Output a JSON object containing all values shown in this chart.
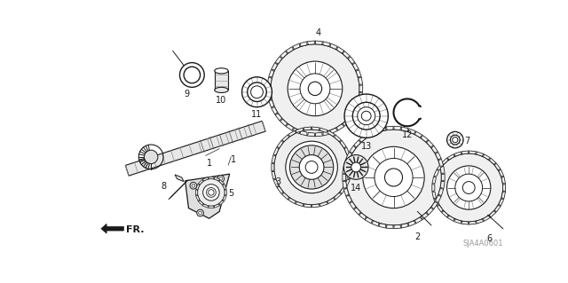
{
  "bg_color": "#ffffff",
  "diagram_id": "SJA4A0601",
  "dark": "#1a1a1a",
  "gray": "#aaaaaa",
  "light_gray": "#dddddd"
}
